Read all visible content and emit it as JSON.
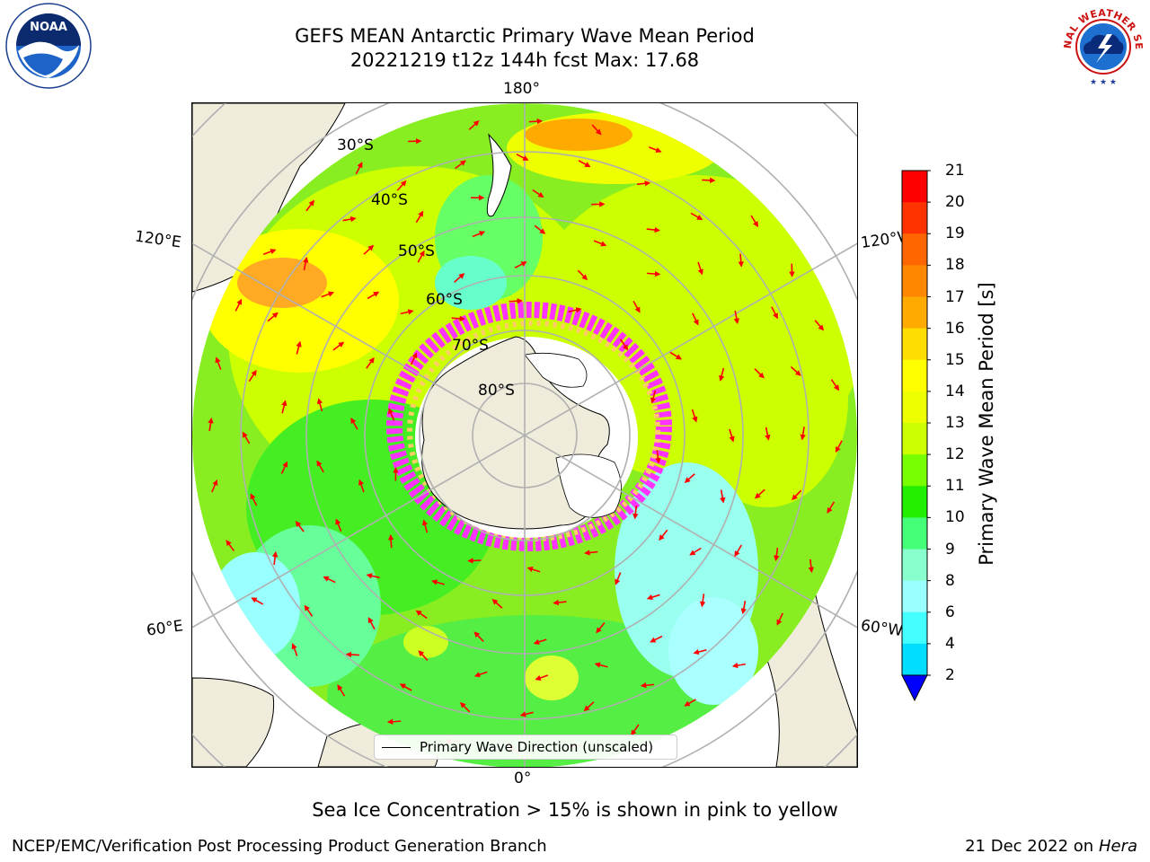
{
  "title": {
    "line1": "GEFS MEAN Antarctic Primary Wave Mean Period",
    "line2": "20221219 t12z 144h fcst   Max: 17.68"
  },
  "map": {
    "projection": "south-polar-stereographic",
    "longitude_labels": {
      "top": "180°",
      "bottom": "0°",
      "upper_left": "120°E",
      "lower_left": "60°E",
      "upper_right": "120°W",
      "lower_right": "60°W"
    },
    "latitude_labels": [
      "30°S",
      "40°S",
      "50°S",
      "60°S",
      "70°S",
      "80°S"
    ],
    "land_color": "#efecdc",
    "graticule_color": "#b0b0b0",
    "arrow_color": "#ff0000",
    "ice_colors": [
      "#ff33ff",
      "#ff99cc",
      "#ffcc66"
    ]
  },
  "legend": {
    "label": "Primary Wave Direction (unscaled)"
  },
  "colorbar": {
    "label": "Primary Wave Mean Period [s]",
    "ticks": [
      "21",
      "20",
      "19",
      "18",
      "17",
      "16",
      "15",
      "14",
      "13",
      "12",
      "11",
      "10",
      "9",
      "8",
      "6",
      "4",
      "2"
    ],
    "colors": [
      "#ff0000",
      "#ff3300",
      "#ff6600",
      "#ff8800",
      "#ffaa00",
      "#ffdd00",
      "#ffff00",
      "#eeff00",
      "#ccff00",
      "#77ff00",
      "#22ee00",
      "#44ff77",
      "#88ffcc",
      "#99ffff",
      "#44ffff",
      "#00ddff",
      "#0077ff"
    ],
    "extend_color": "#0000ff"
  },
  "footer": {
    "note": "Sea Ice Concentration > 15% is shown in pink to yellow",
    "credit": "NCEP/EMC/Verification Post Processing Product Generation Branch",
    "date": "21 Dec 2022 on",
    "host": "Hera"
  },
  "logos": {
    "left_text": "NOAA",
    "right_text": "NATIONAL WEATHER SERVICE"
  }
}
